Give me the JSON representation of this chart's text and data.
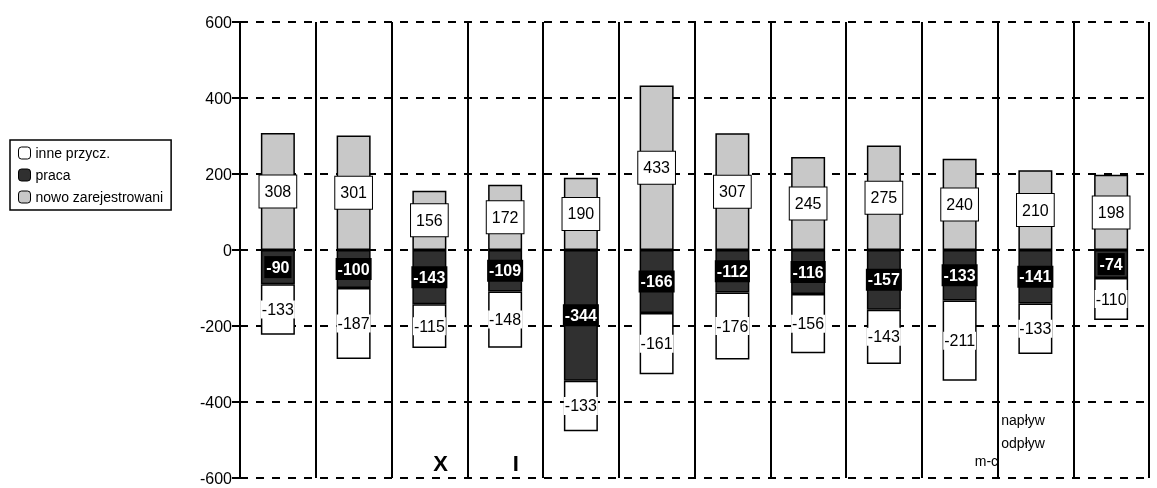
{
  "chart_data": {
    "type": "bar",
    "stacked": true,
    "categories": [
      null,
      null,
      null,
      null,
      null,
      null,
      null,
      null,
      null,
      null,
      null,
      null
    ],
    "series": [
      {
        "name": "nowo zarejestrowani",
        "color": "#c8c8c8",
        "values": [
          308,
          301,
          156,
          172,
          190,
          433,
          307,
          245,
          275,
          240,
          210,
          198
        ]
      },
      {
        "name": "praca",
        "color": "#303030",
        "values": [
          -90,
          -100,
          -143,
          -109,
          -344,
          -166,
          -112,
          -116,
          -157,
          -133,
          -141,
          -74
        ]
      },
      {
        "name": "inne przycz.",
        "color": "#ffffff",
        "values": [
          -133,
          -187,
          -115,
          -148,
          -133,
          -161,
          -176,
          -156,
          -143,
          -211,
          -133,
          -110
        ]
      }
    ],
    "ylim": [
      -600,
      600
    ],
    "yticks": [
      -600,
      -400,
      -200,
      0,
      200,
      400,
      600
    ],
    "grid": true,
    "legend": "left",
    "data_labels": true,
    "annotations": [
      "X",
      "I",
      "napływ",
      "odpływ",
      "m-c"
    ]
  }
}
